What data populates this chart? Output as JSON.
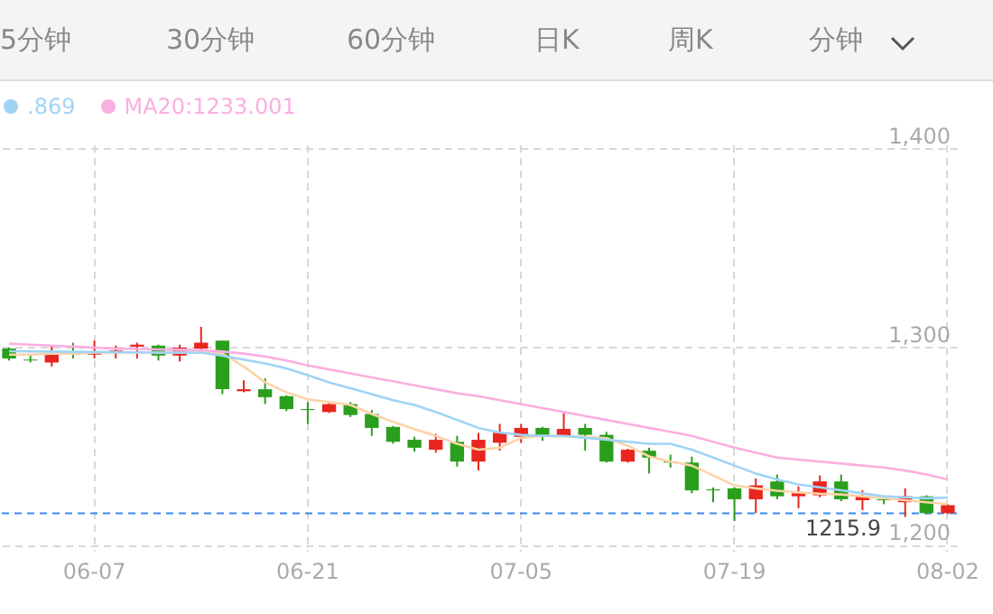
{
  "chart_data": {
    "type": "candlestick",
    "annotations": [
      "5分钟",
      "30分钟",
      "60分钟",
      "日K",
      "周K",
      "分钟"
    ],
    "categories": [
      null,
      null,
      null,
      null,
      "06-07",
      null,
      null,
      null,
      null,
      null,
      null,
      null,
      null,
      null,
      "06-21",
      null,
      null,
      null,
      null,
      null,
      null,
      null,
      null,
      null,
      "07-05",
      null,
      null,
      null,
      null,
      null,
      null,
      null,
      null,
      null,
      "07-19",
      null,
      null,
      null,
      null,
      null,
      null,
      null,
      null,
      null,
      "08-02"
    ],
    "ohlc": [
      [
        1299,
        1299.5,
        1293,
        1294
      ],
      [
        1293.5,
        1296,
        1292,
        1293
      ],
      [
        1292,
        1300,
        1290,
        1296.5
      ],
      [
        1296.5,
        1302,
        1294,
        1296
      ],
      [
        1296,
        1303,
        1294,
        1297.5
      ],
      [
        1296.5,
        1300.5,
        1294,
        1298
      ],
      [
        1300,
        1302,
        1294,
        1301
      ],
      [
        1300.5,
        1301,
        1293,
        1295.5
      ],
      [
        1295.5,
        1301,
        1292.5,
        1299.5
      ],
      [
        1299,
        1310,
        1298,
        1302
      ],
      [
        1303,
        1303,
        1276,
        1278.5
      ],
      [
        1277.5,
        1283,
        1277,
        1278.5
      ],
      [
        1278.5,
        1284,
        1271,
        1274.5
      ],
      [
        1275,
        1275.5,
        1267.5,
        1268.5
      ],
      [
        1268.5,
        1272,
        1261,
        1268
      ],
      [
        1267,
        1271.5,
        1266.5,
        1271
      ],
      [
        1271,
        1272,
        1264.5,
        1265.5
      ],
      [
        1266,
        1268,
        1255,
        1259
      ],
      [
        1259.5,
        1260,
        1251,
        1252
      ],
      [
        1253,
        1254.5,
        1247,
        1249
      ],
      [
        1248,
        1256,
        1246.5,
        1253
      ],
      [
        1252,
        1255,
        1239.5,
        1242
      ],
      [
        1242,
        1256.5,
        1237.5,
        1253
      ],
      [
        1251.5,
        1261,
        1247.5,
        1256.5
      ],
      [
        1254.5,
        1261,
        1251.5,
        1259
      ],
      [
        1259,
        1259.5,
        1252.5,
        1254.5
      ],
      [
        1255,
        1266.5,
        1255,
        1258.5
      ],
      [
        1259,
        1261,
        1247.5,
        1255.5
      ],
      [
        1255.5,
        1257,
        1241.5,
        1242
      ],
      [
        1242,
        1248.5,
        1241.5,
        1248
      ],
      [
        1247.5,
        1249,
        1236,
        1244
      ],
      [
        1242,
        1245.5,
        1239,
        1241.5
      ],
      [
        1241.5,
        1244.5,
        1226,
        1227.5
      ],
      [
        1228,
        1229,
        1221.5,
        1227.5
      ],
      [
        1228.5,
        1229,
        1212,
        1223
      ],
      [
        1223,
        1233.5,
        1216,
        1230
      ],
      [
        1232,
        1235.5,
        1223,
        1224.5
      ],
      [
        1224.5,
        1229.5,
        1218.5,
        1226
      ],
      [
        1225,
        1235,
        1224,
        1232
      ],
      [
        1232,
        1235.5,
        1222,
        1223
      ],
      [
        1222.5,
        1227.5,
        1217.5,
        1224.5
      ],
      [
        1223,
        1224.5,
        1220.5,
        1222.5
      ],
      [
        1221.5,
        1228.5,
        1214,
        1224.5
      ],
      [
        1224.5,
        1225,
        1215.5,
        1216
      ],
      [
        1216,
        1220.5,
        1215.5,
        1220
      ]
    ],
    "colors": [
      "#2a9f1d",
      "#2a9f1d",
      "#e8251e",
      "#2a9f1d",
      "#e8251e",
      "#e8251e",
      "#e8251e",
      "#2a9f1d",
      "#e8251e",
      "#e8251e",
      "#2a9f1d",
      "#e8251e",
      "#2a9f1d",
      "#2a9f1d",
      "#2a9f1d",
      "#e8251e",
      "#2a9f1d",
      "#2a9f1d",
      "#2a9f1d",
      "#2a9f1d",
      "#e8251e",
      "#2a9f1d",
      "#e8251e",
      "#e8251e",
      "#e8251e",
      "#2a9f1d",
      "#e8251e",
      "#2a9f1d",
      "#2a9f1d",
      "#e8251e",
      "#2a9f1d",
      "#2a9f1d",
      "#2a9f1d",
      "#2a9f1d",
      "#2a9f1d",
      "#e8251e",
      "#2a9f1d",
      "#e8251e",
      "#e8251e",
      "#2a9f1d",
      "#e8251e",
      "#2a9f1d",
      "#e8251e",
      "#2a9f1d",
      "#e8251e"
    ],
    "series": [
      {
        "type": "line",
        "color": "#fdd3a8",
        "values": [
          1296,
          1296,
          1296.5,
          1296.5,
          1297,
          1297,
          1297,
          1297,
          1297,
          1297,
          1296.5,
          1290,
          1282,
          1277,
          1273.4,
          1272,
          1270.6,
          1266,
          1262,
          1258.4,
          1255,
          1251,
          1248,
          1249,
          1254,
          1255,
          1254.7,
          1254.5,
          1253.8,
          1250,
          1244.6,
          1242,
          1240,
          1235,
          1230,
          1228.5,
          1227.3,
          1226.5,
          1225.8,
          1225.4,
          1224.5,
          1223.5,
          1222.5,
          1221.5,
          1220.6
        ]
      },
      {
        "type": "line",
        "name": ".869",
        "color": "#9fd4f7",
        "values": [
          1297.7,
          1297.6,
          1297.5,
          1297.4,
          1297.3,
          1297.2,
          1297.1,
          1297,
          1297,
          1297,
          1295.4,
          1293.5,
          1291.5,
          1289,
          1285.6,
          1282,
          1279,
          1276,
          1273,
          1270.6,
          1267,
          1263,
          1259,
          1256.7,
          1255.5,
          1255,
          1255,
          1254,
          1253,
          1252,
          1251,
          1251,
          1248,
          1244,
          1240,
          1236,
          1233,
          1230.5,
          1229,
          1227.5,
          1226,
          1224.5,
          1224,
          1223.5,
          1223.9
        ]
      },
      {
        "type": "line",
        "name": "MA20:1233.001",
        "color": "#fbaee0",
        "values": [
          1301.5,
          1301,
          1300.5,
          1300,
          1299.5,
          1299,
          1298.8,
          1298.6,
          1298.4,
          1298.2,
          1297.5,
          1296.5,
          1295,
          1293,
          1290.5,
          1288.5,
          1286.5,
          1284.5,
          1282.5,
          1280.5,
          1278.5,
          1276.5,
          1275,
          1273,
          1271,
          1269,
          1267,
          1265,
          1263,
          1261,
          1259,
          1257,
          1255,
          1252,
          1249,
          1246.5,
          1244,
          1243,
          1242,
          1241,
          1240,
          1239,
          1237.5,
          1235.5,
          1233
        ]
      }
    ],
    "ylim": [
      1197,
      1402
    ],
    "yticks": [
      {
        "value": 1200,
        "label": "1,200"
      },
      {
        "value": 1300,
        "label": "1,300"
      },
      {
        "value": 1400,
        "label": "1,400"
      }
    ],
    "ref_lines": [
      {
        "axis": "y",
        "value": 1215.9,
        "label": "1215.9",
        "color": "#3b8beb",
        "line_style": "dashed"
      }
    ],
    "grid": true,
    "legend": "top left"
  }
}
